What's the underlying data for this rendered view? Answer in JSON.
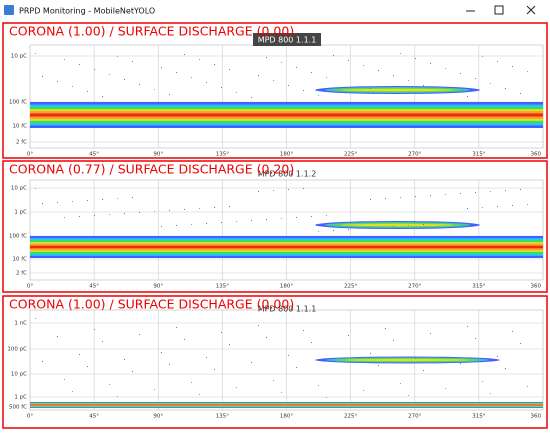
{
  "window": {
    "title": "PRPD Monitoring - MobileNetYOLO"
  },
  "panels": [
    {
      "classification": "CORONA (1.00) / SURFACE DISCHARGE (0.00)",
      "device": "MPD 800 1.1.1",
      "y_ticks": [
        "10 pC",
        "100 fC",
        "10 fC",
        "2 fC"
      ],
      "x_ticks": [
        "0°",
        "45°",
        "90°",
        "135°",
        "180°",
        "225°",
        "270°",
        "315°",
        "360"
      ]
    },
    {
      "classification": "CORONA (0.77) / SURFACE DISCHARGE (0.20)",
      "device": "MPD 800 1.1.2",
      "y_ticks": [
        "10 pC",
        "1 pC",
        "100 fC",
        "10 fC",
        "2 fC"
      ],
      "x_ticks": [
        "0°",
        "45°",
        "90°",
        "135°",
        "180°",
        "225°",
        "270°",
        "315°",
        "360"
      ]
    },
    {
      "classification": "CORONA (1.00) / SURFACE DISCHARGE (0.00)",
      "device": "MPD 800 1.1.1",
      "y_ticks": [
        "1 nC",
        "100 pC",
        "10 pC",
        "1 pC",
        "500 fC"
      ],
      "x_ticks": [
        "0°",
        "45°",
        "90°",
        "135°",
        "180°",
        "225°",
        "270°",
        "315°",
        "360"
      ]
    }
  ]
}
